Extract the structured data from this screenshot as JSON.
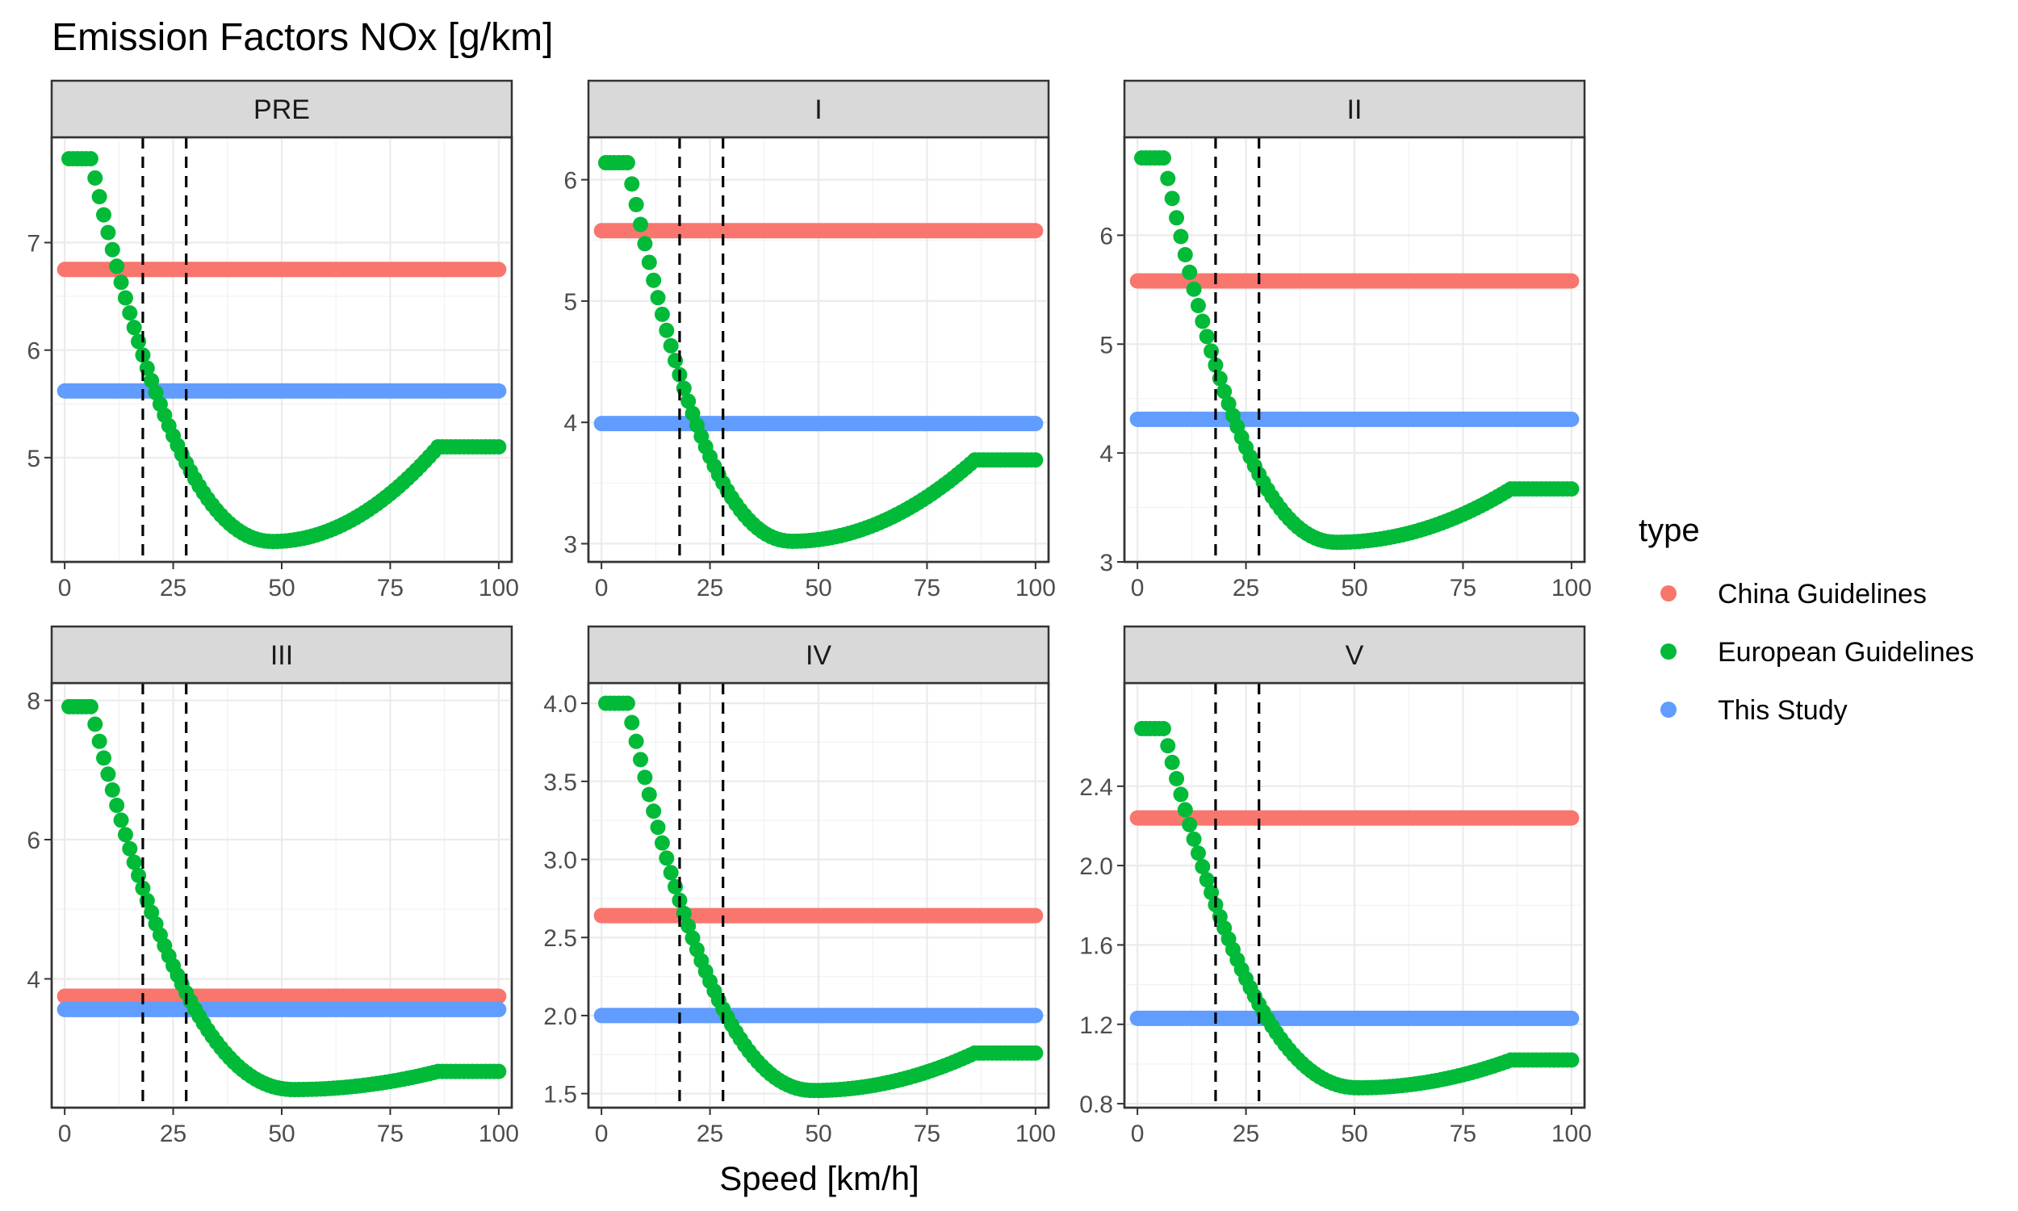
{
  "chart_data": {
    "type": "scatter",
    "title": "Emission Factors NOx [g/km]",
    "xlabel": "Speed [km/h]",
    "ylabel": "",
    "xlim": [
      -3,
      103
    ],
    "x_ticks": [
      0,
      25,
      50,
      75,
      100
    ],
    "x_tick_labels": [
      "0",
      "25",
      "50",
      "75",
      "100"
    ],
    "reference_lines_x": [
      18,
      28
    ],
    "grid": true,
    "legend": {
      "title": "type",
      "position": "right",
      "entries": [
        {
          "label": "China Guidelines",
          "color": "#F8766D"
        },
        {
          "label": "European Guidelines",
          "color": "#00BA38"
        },
        {
          "label": "This Study",
          "color": "#619CFF"
        }
      ]
    },
    "panels": [
      {
        "label": "PRE",
        "ylim": [
          4.03,
          7.98
        ],
        "y_ticks": [
          5,
          6,
          7
        ],
        "y_tick_labels": [
          "5",
          "6",
          "7"
        ],
        "china": 6.75,
        "this_study": 5.62,
        "european": {
          "flat_start": 7.78,
          "flat_until": 6,
          "min_speed": 48,
          "min_value": 4.22,
          "end_speed": 86,
          "end_value": 5.1
        }
      },
      {
        "label": "I",
        "ylim": [
          2.85,
          6.35
        ],
        "y_ticks": [
          3,
          4,
          5,
          6
        ],
        "y_tick_labels": [
          "3",
          "4",
          "5",
          "6"
        ],
        "china": 5.58,
        "this_study": 3.99,
        "european": {
          "flat_start": 6.14,
          "flat_until": 6,
          "min_speed": 44,
          "min_value": 3.02,
          "end_speed": 86,
          "end_value": 3.69
        }
      },
      {
        "label": "II",
        "ylim": [
          3.0,
          6.9
        ],
        "y_ticks": [
          3,
          4,
          5,
          6
        ],
        "y_tick_labels": [
          "3",
          "4",
          "5",
          "6"
        ],
        "china": 5.58,
        "this_study": 4.31,
        "european": {
          "flat_start": 6.71,
          "flat_until": 6,
          "min_speed": 46,
          "min_value": 3.18,
          "end_speed": 86,
          "end_value": 3.67
        }
      },
      {
        "label": "III",
        "ylim": [
          2.15,
          8.25
        ],
        "y_ticks": [
          4,
          6,
          8
        ],
        "y_tick_labels": [
          "4",
          "6",
          "8"
        ],
        "china": 3.75,
        "this_study": 3.56,
        "european": {
          "flat_start": 7.91,
          "flat_until": 6,
          "min_speed": 53,
          "min_value": 2.41,
          "end_speed": 86,
          "end_value": 2.67
        }
      },
      {
        "label": "IV",
        "ylim": [
          1.41,
          4.13
        ],
        "y_ticks": [
          1.5,
          2.0,
          2.5,
          3.0,
          3.5,
          4.0
        ],
        "y_tick_labels": [
          "1.5",
          "2.0",
          "2.5",
          "3.0",
          "3.5",
          "4.0"
        ],
        "china": 2.64,
        "this_study": 2.0,
        "european": {
          "flat_start": 4.0,
          "flat_until": 6,
          "min_speed": 49,
          "min_value": 1.52,
          "end_speed": 86,
          "end_value": 1.76
        }
      },
      {
        "label": "V",
        "ylim": [
          0.78,
          2.92
        ],
        "y_ticks": [
          0.8,
          1.2,
          1.6,
          2.0,
          2.4
        ],
        "y_tick_labels": [
          "0.8",
          "1.2",
          "1.6",
          "2.0",
          "2.4"
        ],
        "china": 2.24,
        "this_study": 1.23,
        "european": {
          "flat_start": 2.69,
          "flat_until": 6,
          "min_speed": 51,
          "min_value": 0.88,
          "end_speed": 86,
          "end_value": 1.02
        }
      }
    ]
  }
}
